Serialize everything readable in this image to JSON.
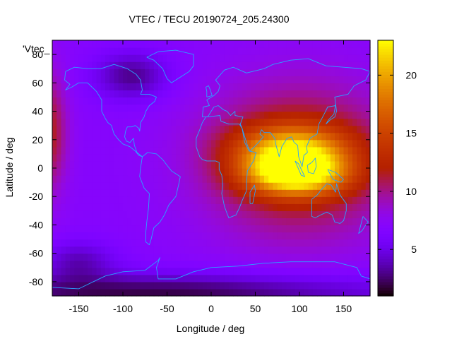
{
  "chart_data": {
    "type": "heatmap",
    "title": "VTEC / TECU 20190724_205.24300",
    "xlabel": "Longitude / deg",
    "ylabel": "Latitude / deg",
    "key_label": "'Vtec_",
    "xlim": [
      -180,
      180
    ],
    "ylim": [
      -90,
      90
    ],
    "x_ticks": [
      -150,
      -100,
      -50,
      0,
      50,
      100,
      150
    ],
    "y_ticks": [
      -80,
      -60,
      -40,
      -20,
      0,
      20,
      40,
      60,
      80
    ],
    "colorbar": {
      "min": 1,
      "max": 23,
      "ticks": [
        5,
        10,
        15,
        20
      ]
    },
    "background_level": 7,
    "features": [
      {
        "name": "daytime-maximum",
        "lon": 95,
        "lat": -3,
        "sigma_lon": 40,
        "sigma_lat": 11,
        "amp": 13.5
      },
      {
        "name": "northern-crest",
        "lon": 90,
        "lat": 15,
        "sigma_lon": 45,
        "sigma_lat": 12,
        "amp": 8
      },
      {
        "name": "dayside-plateau",
        "lon": 100,
        "lat": 5,
        "sigma_lon": 75,
        "sigma_lat": 38,
        "amp": 6
      },
      {
        "name": "wrapped-dayside-west",
        "lon": -185,
        "lat": 25,
        "sigma_lon": 15,
        "sigma_lat": 30,
        "amp": 5
      },
      {
        "name": "north-america-low",
        "lon": -90,
        "lat": 65,
        "sigma_lon": 30,
        "sigma_lat": 12,
        "amp": -4
      },
      {
        "name": "south-polar-low",
        "lon": -60,
        "lat": -88,
        "sigma_lon": 200,
        "sigma_lat": 10,
        "amp": -5
      },
      {
        "name": "south-atlantic-low",
        "lon": -150,
        "lat": -65,
        "sigma_lon": 30,
        "sigma_lat": 10,
        "amp": -3
      }
    ],
    "coastlines": [
      {
        "name": "north-america",
        "points": [
          [
            -165,
            68
          ],
          [
            -155,
            71
          ],
          [
            -140,
            70
          ],
          [
            -125,
            70
          ],
          [
            -110,
            73
          ],
          [
            -95,
            70
          ],
          [
            -85,
            66
          ],
          [
            -80,
            62
          ],
          [
            -78,
            55
          ],
          [
            -80,
            52
          ],
          [
            -70,
            52
          ],
          [
            -62,
            50
          ],
          [
            -64,
            47
          ],
          [
            -70,
            44
          ],
          [
            -74,
            40
          ],
          [
            -76,
            36
          ],
          [
            -80,
            32
          ],
          [
            -81,
            26
          ],
          [
            -82,
            28
          ],
          [
            -86,
            30
          ],
          [
            -90,
            29
          ],
          [
            -95,
            29
          ],
          [
            -97,
            26
          ],
          [
            -98,
            22
          ],
          [
            -96,
            19
          ],
          [
            -92,
            18
          ],
          [
            -88,
            21
          ],
          [
            -87,
            16
          ],
          [
            -84,
            11
          ],
          [
            -80,
            9
          ],
          [
            -78,
            8
          ],
          [
            -82,
            9
          ],
          [
            -86,
            12
          ],
          [
            -92,
            15
          ],
          [
            -100,
            17
          ],
          [
            -105,
            20
          ],
          [
            -110,
            24
          ],
          [
            -113,
            30
          ],
          [
            -117,
            32
          ],
          [
            -120,
            35
          ],
          [
            -124,
            40
          ],
          [
            -124,
            48
          ],
          [
            -130,
            54
          ],
          [
            -140,
            60
          ],
          [
            -150,
            60
          ],
          [
            -158,
            57
          ],
          [
            -165,
            55
          ],
          [
            -160,
            59
          ],
          [
            -166,
            62
          ],
          [
            -165,
            68
          ]
        ]
      },
      {
        "name": "greenland",
        "points": [
          [
            -73,
            78
          ],
          [
            -60,
            82
          ],
          [
            -40,
            83
          ],
          [
            -20,
            80
          ],
          [
            -20,
            72
          ],
          [
            -25,
            68
          ],
          [
            -40,
            62
          ],
          [
            -45,
            60
          ],
          [
            -50,
            63
          ],
          [
            -55,
            70
          ],
          [
            -65,
            76
          ],
          [
            -73,
            78
          ]
        ]
      },
      {
        "name": "south-america",
        "points": [
          [
            -78,
            8
          ],
          [
            -72,
            11
          ],
          [
            -62,
            10
          ],
          [
            -55,
            6
          ],
          [
            -50,
            2
          ],
          [
            -45,
            -2
          ],
          [
            -35,
            -6
          ],
          [
            -37,
            -12
          ],
          [
            -40,
            -20
          ],
          [
            -48,
            -26
          ],
          [
            -53,
            -33
          ],
          [
            -58,
            -38
          ],
          [
            -65,
            -42
          ],
          [
            -68,
            -50
          ],
          [
            -70,
            -54
          ],
          [
            -74,
            -52
          ],
          [
            -74,
            -45
          ],
          [
            -73,
            -38
          ],
          [
            -71,
            -28
          ],
          [
            -70,
            -18
          ],
          [
            -76,
            -14
          ],
          [
            -81,
            -6
          ],
          [
            -80,
            0
          ],
          [
            -78,
            8
          ]
        ]
      },
      {
        "name": "eurasia",
        "points": [
          [
            -10,
            36
          ],
          [
            -9,
            43
          ],
          [
            -2,
            44
          ],
          [
            -5,
            48
          ],
          [
            3,
            51
          ],
          [
            8,
            54
          ],
          [
            10,
            58
          ],
          [
            5,
            62
          ],
          [
            15,
            69
          ],
          [
            25,
            71
          ],
          [
            40,
            67
          ],
          [
            60,
            70
          ],
          [
            70,
            73
          ],
          [
            90,
            76
          ],
          [
            110,
            77
          ],
          [
            130,
            72
          ],
          [
            150,
            71
          ],
          [
            170,
            70
          ],
          [
            180,
            68
          ],
          [
            175,
            62
          ],
          [
            162,
            58
          ],
          [
            155,
            52
          ],
          [
            140,
            50
          ],
          [
            141,
            44
          ],
          [
            132,
            43
          ],
          [
            128,
            38
          ],
          [
            122,
            31
          ],
          [
            120,
            24
          ],
          [
            112,
            21
          ],
          [
            108,
            15
          ],
          [
            109,
            11
          ],
          [
            105,
            9
          ],
          [
            103,
            1
          ],
          [
            99,
            8
          ],
          [
            98,
            16
          ],
          [
            94,
            18
          ],
          [
            91,
            22
          ],
          [
            86,
            21
          ],
          [
            80,
            15
          ],
          [
            77,
            8
          ],
          [
            73,
            17
          ],
          [
            72,
            21
          ],
          [
            67,
            25
          ],
          [
            60,
            25
          ],
          [
            57,
            27
          ],
          [
            55,
            24
          ],
          [
            59,
            22
          ],
          [
            52,
            17
          ],
          [
            44,
            12
          ],
          [
            41,
            16
          ],
          [
            35,
            28
          ],
          [
            33,
            31
          ],
          [
            36,
            36
          ],
          [
            27,
            37
          ],
          [
            27,
            40
          ],
          [
            22,
            37
          ],
          [
            18,
            40
          ],
          [
            14,
            41
          ],
          [
            8,
            44
          ],
          [
            3,
            43
          ],
          [
            -4,
            36
          ],
          [
            -10,
            36
          ]
        ]
      },
      {
        "name": "africa",
        "points": [
          [
            -17,
            15
          ],
          [
            -17,
            21
          ],
          [
            -13,
            27
          ],
          [
            -10,
            32
          ],
          [
            -6,
            36
          ],
          [
            10,
            37
          ],
          [
            11,
            33
          ],
          [
            20,
            31
          ],
          [
            32,
            31
          ],
          [
            35,
            28
          ],
          [
            38,
            18
          ],
          [
            43,
            12
          ],
          [
            51,
            11
          ],
          [
            48,
            5
          ],
          [
            41,
            -2
          ],
          [
            40,
            -10
          ],
          [
            40,
            -16
          ],
          [
            35,
            -23
          ],
          [
            32,
            -28
          ],
          [
            28,
            -33
          ],
          [
            20,
            -35
          ],
          [
            18,
            -32
          ],
          [
            15,
            -27
          ],
          [
            12,
            -18
          ],
          [
            13,
            -12
          ],
          [
            12,
            -5
          ],
          [
            9,
            -1
          ],
          [
            9,
            4
          ],
          [
            5,
            5
          ],
          [
            -5,
            5
          ],
          [
            -10,
            6
          ],
          [
            -13,
            8
          ],
          [
            -17,
            15
          ]
        ]
      },
      {
        "name": "madagascar",
        "points": [
          [
            44,
            -25
          ],
          [
            47,
            -25
          ],
          [
            50,
            -16
          ],
          [
            49,
            -12
          ],
          [
            44,
            -17
          ],
          [
            44,
            -25
          ]
        ]
      },
      {
        "name": "australia",
        "points": [
          [
            114,
            -22
          ],
          [
            114,
            -34
          ],
          [
            118,
            -35
          ],
          [
            124,
            -33
          ],
          [
            131,
            -31
          ],
          [
            137,
            -33
          ],
          [
            140,
            -38
          ],
          [
            146,
            -39
          ],
          [
            150,
            -37
          ],
          [
            153,
            -30
          ],
          [
            153,
            -25
          ],
          [
            146,
            -19
          ],
          [
            142,
            -11
          ],
          [
            141,
            -17
          ],
          [
            136,
            -12
          ],
          [
            131,
            -11
          ],
          [
            125,
            -15
          ],
          [
            120,
            -19
          ],
          [
            114,
            -22
          ]
        ]
      },
      {
        "name": "borneo",
        "points": [
          [
            109,
            2
          ],
          [
            114,
            4
          ],
          [
            118,
            7
          ],
          [
            119,
            1
          ],
          [
            116,
            -4
          ],
          [
            110,
            -3
          ],
          [
            109,
            2
          ]
        ]
      },
      {
        "name": "sumatra",
        "points": [
          [
            95,
            5
          ],
          [
            99,
            3
          ],
          [
            106,
            -6
          ],
          [
            102,
            -5
          ],
          [
            95,
            5
          ]
        ]
      },
      {
        "name": "new-guinea",
        "points": [
          [
            132,
            -1
          ],
          [
            141,
            -3
          ],
          [
            150,
            -8
          ],
          [
            147,
            -10
          ],
          [
            138,
            -8
          ],
          [
            132,
            -1
          ]
        ]
      },
      {
        "name": "japan",
        "points": [
          [
            130,
            31
          ],
          [
            135,
            34
          ],
          [
            140,
            36
          ],
          [
            142,
            40
          ],
          [
            141,
            45
          ],
          [
            139,
            38
          ],
          [
            133,
            34
          ],
          [
            130,
            31
          ]
        ]
      },
      {
        "name": "great-britain",
        "points": [
          [
            -5,
            50
          ],
          [
            1,
            51
          ],
          [
            -1,
            55
          ],
          [
            -3,
            58
          ],
          [
            -6,
            57
          ],
          [
            -5,
            54
          ],
          [
            -5,
            50
          ]
        ]
      },
      {
        "name": "new-zealand",
        "points": [
          [
            172,
            -34
          ],
          [
            178,
            -38
          ],
          [
            174,
            -41
          ],
          [
            171,
            -44
          ],
          [
            167,
            -46
          ],
          [
            172,
            -34
          ]
        ]
      },
      {
        "name": "antarctica",
        "points": [
          [
            -180,
            -84
          ],
          [
            -150,
            -85
          ],
          [
            -120,
            -76
          ],
          [
            -100,
            -73
          ],
          [
            -75,
            -72
          ],
          [
            -60,
            -65
          ],
          [
            -58,
            -63
          ],
          [
            -62,
            -70
          ],
          [
            -60,
            -78
          ],
          [
            -40,
            -78
          ],
          [
            -20,
            -73
          ],
          [
            0,
            -70
          ],
          [
            30,
            -69
          ],
          [
            60,
            -67
          ],
          [
            90,
            -66
          ],
          [
            120,
            -66
          ],
          [
            140,
            -66
          ],
          [
            165,
            -70
          ],
          [
            170,
            -76
          ],
          [
            180,
            -78
          ]
        ]
      }
    ]
  }
}
